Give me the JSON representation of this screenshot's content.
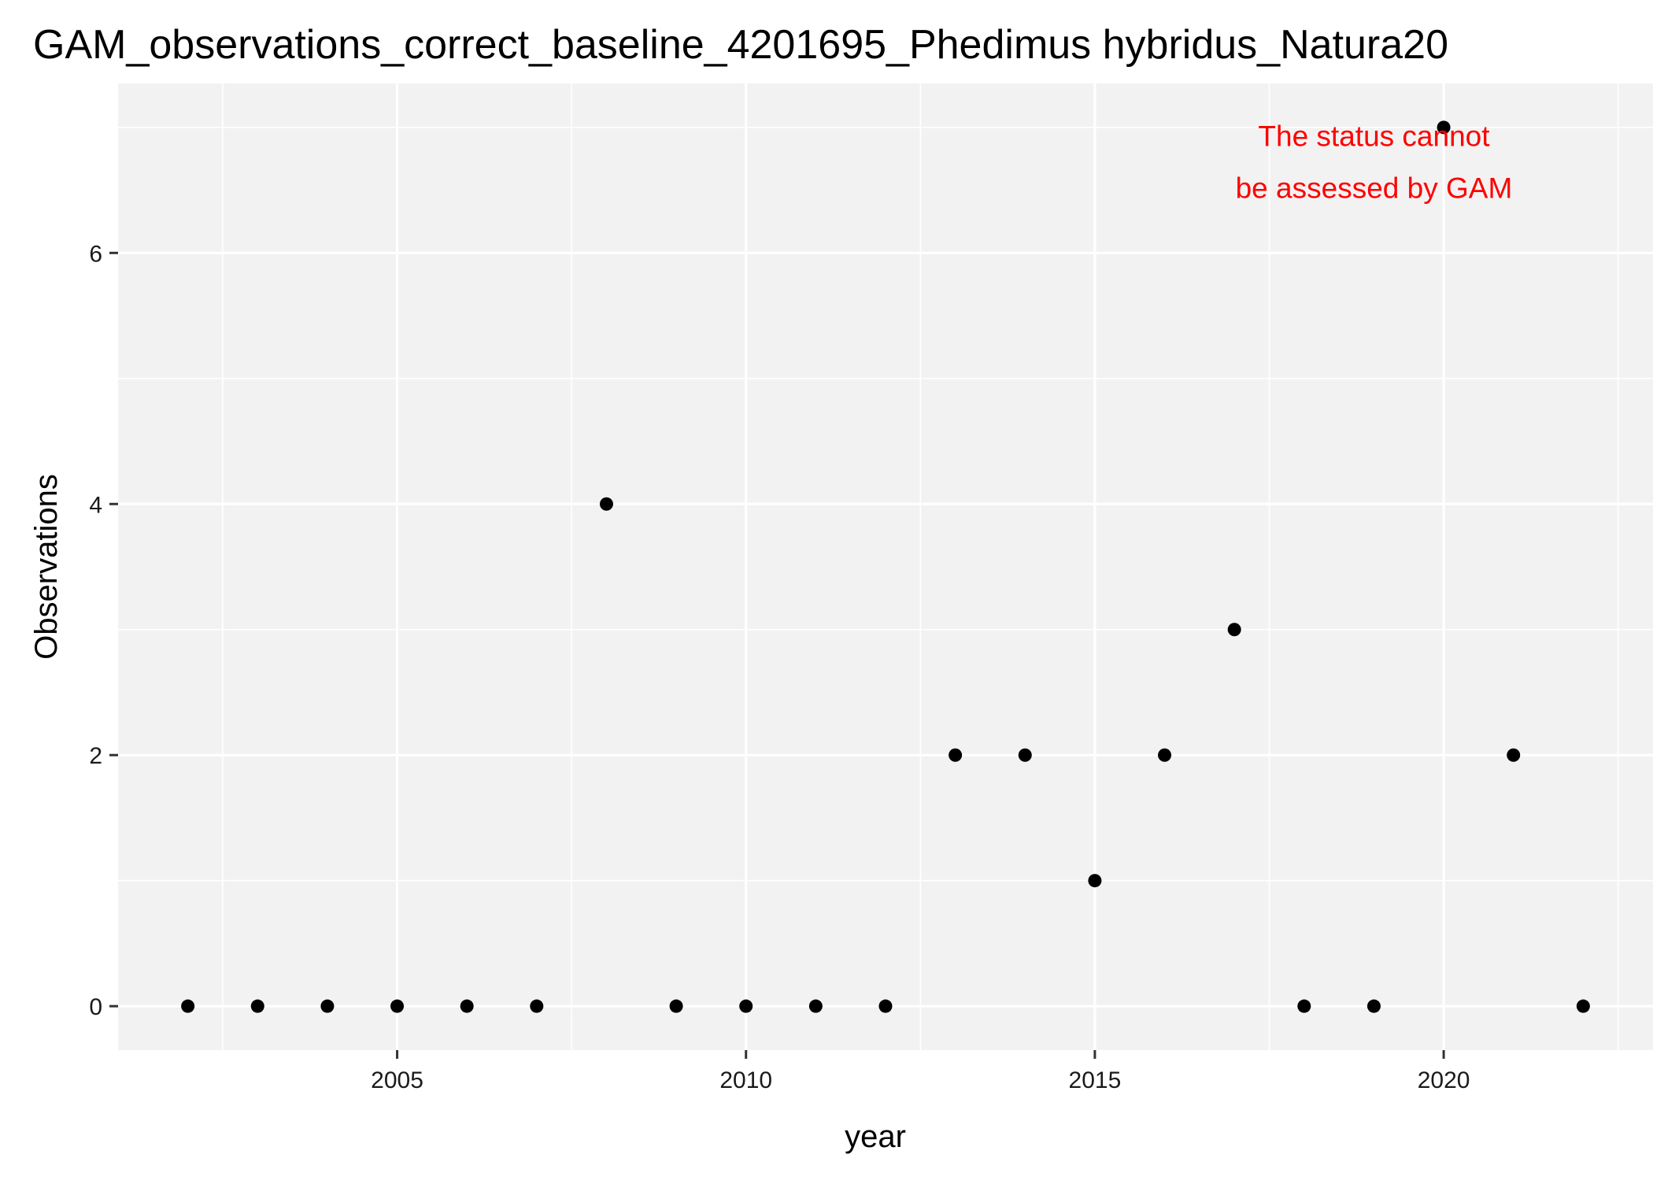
{
  "chart_data": {
    "type": "scatter",
    "title": "GAM_observations_correct_baseline_4201695_Phedimus hybridus_Natura20",
    "xlabel": "year",
    "ylabel": "Observations",
    "xlim": [
      2001,
      2023
    ],
    "ylim": [
      -0.35,
      7.35
    ],
    "x_ticks": [
      2005,
      2010,
      2015,
      2020
    ],
    "x_tick_labels": [
      "2005",
      "2010",
      "2015",
      "2020"
    ],
    "y_ticks": [
      0,
      2,
      4,
      6
    ],
    "y_tick_labels": [
      "0",
      "2",
      "4",
      "6"
    ],
    "grid": true,
    "background": "#f2f2f2",
    "grid_color": "#ffffff",
    "point_color": "#000000",
    "annotation": {
      "lines": [
        "The status cannot",
        "be assessed by GAM"
      ],
      "color": "#ff0000",
      "anchor_x": 2019.0,
      "anchor_y": 6.85
    },
    "points": [
      {
        "x": 2002,
        "y": 0
      },
      {
        "x": 2003,
        "y": 0
      },
      {
        "x": 2004,
        "y": 0
      },
      {
        "x": 2005,
        "y": 0
      },
      {
        "x": 2006,
        "y": 0
      },
      {
        "x": 2007,
        "y": 0
      },
      {
        "x": 2008,
        "y": 4
      },
      {
        "x": 2009,
        "y": 0
      },
      {
        "x": 2010,
        "y": 0
      },
      {
        "x": 2011,
        "y": 0
      },
      {
        "x": 2012,
        "y": 0
      },
      {
        "x": 2013,
        "y": 2
      },
      {
        "x": 2014,
        "y": 2
      },
      {
        "x": 2015,
        "y": 1
      },
      {
        "x": 2016,
        "y": 2
      },
      {
        "x": 2017,
        "y": 3
      },
      {
        "x": 2018,
        "y": 0
      },
      {
        "x": 2019,
        "y": 0
      },
      {
        "x": 2020,
        "y": 7
      },
      {
        "x": 2021,
        "y": 2
      },
      {
        "x": 2022,
        "y": 0
      }
    ]
  }
}
